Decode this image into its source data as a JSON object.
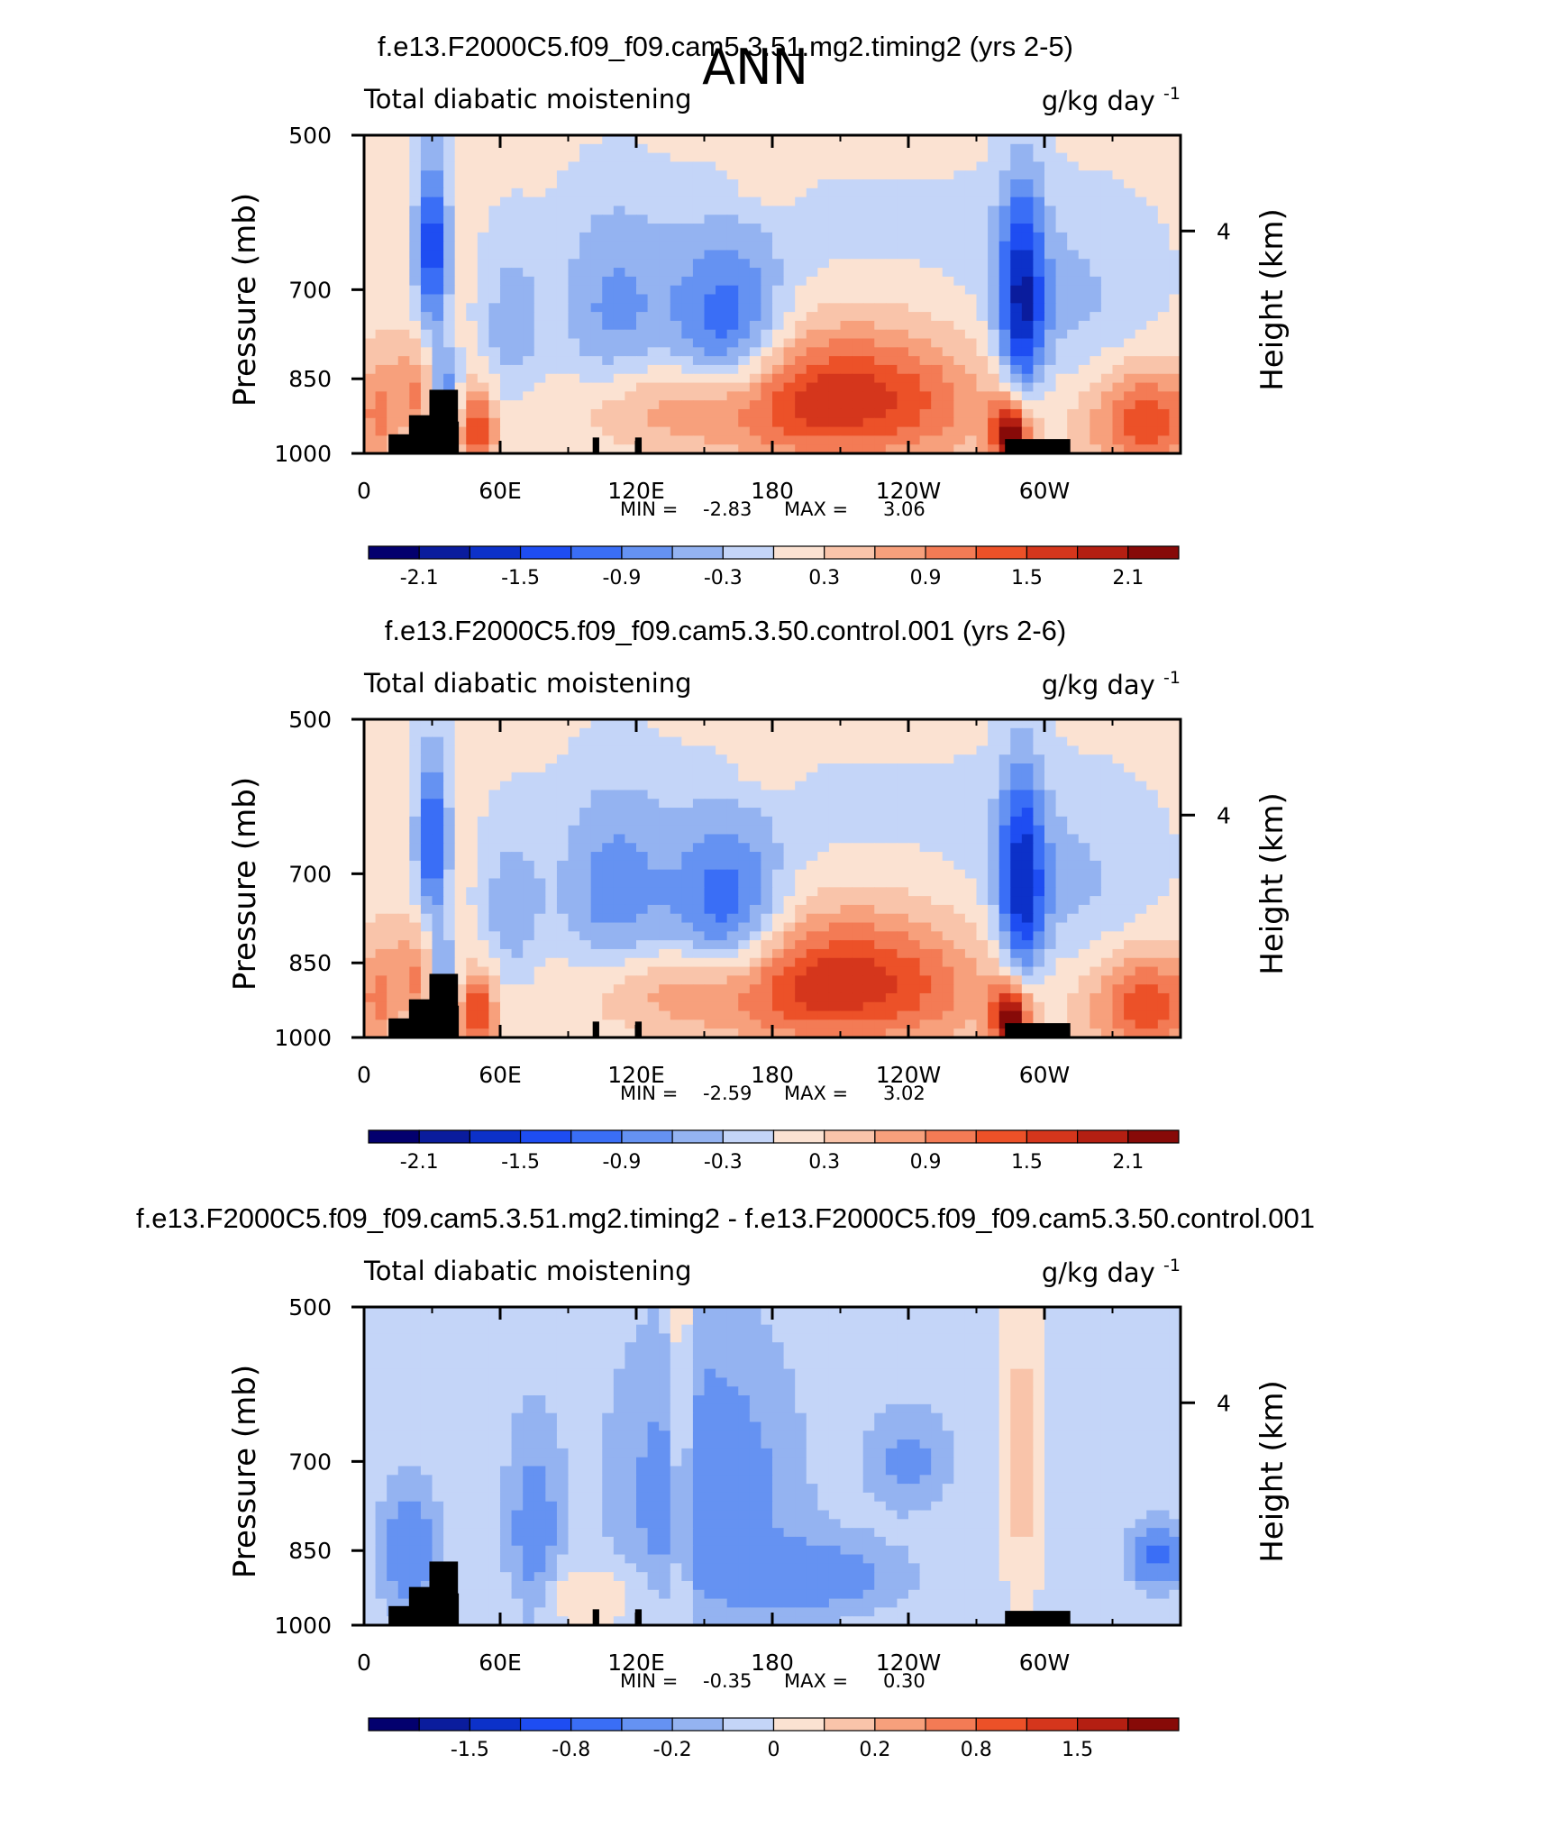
{
  "figure": {
    "season": "ANN"
  },
  "chart_data": [
    {
      "type": "heatmap",
      "title": "f.e13.F2000C5.f09_f09.cam5.3.51.mg2.timing2 (yrs 2-5)",
      "left_string": "Total diabatic moistening",
      "units_base": "g/kg day",
      "units_exp": "-1",
      "ylabel": "Pressure (mb)",
      "y2label": "Height (km)",
      "y_ticks": [
        "500",
        "700",
        "850",
        "1000"
      ],
      "y_tick_values": [
        500,
        700,
        850,
        1000
      ],
      "y2_ticks": [
        "4"
      ],
      "y2_tick_pressure": [
        616
      ],
      "x_ticks": [
        "0",
        "60E",
        "120E",
        "180",
        "120W",
        "60W"
      ],
      "x_tick_values": [
        0,
        60,
        120,
        180,
        240,
        300
      ],
      "xlim": [
        0,
        360
      ],
      "ylim": [
        1000,
        500
      ],
      "min_label": "MIN =",
      "min_value": "-2.83",
      "max_label": "MAX =",
      "max_value": "3.06",
      "colorbar_labels": [
        "-2.1",
        "-1.5",
        "-0.9",
        "-0.3",
        "0.3",
        "0.9",
        "1.5",
        "2.1"
      ],
      "colorbar_levels": [
        -2.4,
        -2.1,
        -1.8,
        -1.5,
        -1.2,
        -0.9,
        -0.6,
        -0.3,
        0,
        0.3,
        0.6,
        0.9,
        1.2,
        1.5,
        1.8,
        2.1,
        2.4
      ],
      "blobs": [
        {
          "lon": 30,
          "p": 640,
          "dlon": 5,
          "dp": 90,
          "v": -1.6
        },
        {
          "lon": 35,
          "p": 880,
          "dlon": 5,
          "dp": 60,
          "v": -1.5
        },
        {
          "lon": 25,
          "p": 880,
          "dlon": 10,
          "dp": 70,
          "v": 0.9
        },
        {
          "lon": 50,
          "p": 950,
          "dlon": 6,
          "dp": 60,
          "v": 1.3
        },
        {
          "lon": 65,
          "p": 760,
          "dlon": 10,
          "dp": 100,
          "v": -0.6
        },
        {
          "lon": 110,
          "p": 740,
          "dlon": 18,
          "dp": 120,
          "v": -0.8
        },
        {
          "lon": 160,
          "p": 770,
          "dlon": 18,
          "dp": 100,
          "v": -1.4
        },
        {
          "lon": 130,
          "p": 900,
          "dlon": 35,
          "dp": 60,
          "v": 0.5
        },
        {
          "lon": 210,
          "p": 890,
          "dlon": 45,
          "dp": 90,
          "v": 1.6
        },
        {
          "lon": 220,
          "p": 610,
          "dlon": 70,
          "dp": 60,
          "v": -0.2
        },
        {
          "lon": 177,
          "p": 550,
          "dlon": 10,
          "dp": 30,
          "v": 0.3
        },
        {
          "lon": 290,
          "p": 720,
          "dlon": 7,
          "dp": 120,
          "v": -1.7
        },
        {
          "lon": 285,
          "p": 960,
          "dlon": 6,
          "dp": 50,
          "v": 2.2
        },
        {
          "lon": 310,
          "p": 740,
          "dlon": 30,
          "dp": 110,
          "v": -0.5
        },
        {
          "lon": 345,
          "p": 930,
          "dlon": 18,
          "dp": 80,
          "v": 1.3
        },
        {
          "lon": 5,
          "p": 920,
          "dlon": 6,
          "dp": 80,
          "v": 0.8
        }
      ],
      "background": 0.12
    },
    {
      "type": "heatmap",
      "title": "f.e13.F2000C5.f09_f09.cam5.3.50.control.001 (yrs 2-6)",
      "left_string": "Total diabatic moistening",
      "units_base": "g/kg day",
      "units_exp": "-1",
      "ylabel": "Pressure (mb)",
      "y2label": "Height (km)",
      "y_ticks": [
        "500",
        "700",
        "850",
        "1000"
      ],
      "y_tick_values": [
        500,
        700,
        850,
        1000
      ],
      "y2_ticks": [
        "4"
      ],
      "y2_tick_pressure": [
        616
      ],
      "x_ticks": [
        "0",
        "60E",
        "120E",
        "180",
        "120W",
        "60W"
      ],
      "x_tick_values": [
        0,
        60,
        120,
        180,
        240,
        300
      ],
      "xlim": [
        0,
        360
      ],
      "ylim": [
        1000,
        500
      ],
      "min_label": "MIN =",
      "min_value": "-2.59",
      "max_label": "MAX =",
      "max_value": "3.02",
      "colorbar_labels": [
        "-2.1",
        "-1.5",
        "-0.9",
        "-0.3",
        "0.3",
        "0.9",
        "1.5",
        "2.1"
      ],
      "colorbar_levels": [
        -2.4,
        -2.1,
        -1.8,
        -1.5,
        -1.2,
        -0.9,
        -0.6,
        -0.3,
        0,
        0.3,
        0.6,
        0.9,
        1.2,
        1.5,
        1.8,
        2.1,
        2.4
      ],
      "blobs": [
        {
          "lon": 30,
          "p": 650,
          "dlon": 5,
          "dp": 90,
          "v": -1.4
        },
        {
          "lon": 35,
          "p": 880,
          "dlon": 5,
          "dp": 60,
          "v": -1.3
        },
        {
          "lon": 25,
          "p": 880,
          "dlon": 10,
          "dp": 70,
          "v": 0.9
        },
        {
          "lon": 50,
          "p": 950,
          "dlon": 6,
          "dp": 60,
          "v": 1.4
        },
        {
          "lon": 65,
          "p": 760,
          "dlon": 10,
          "dp": 100,
          "v": -0.6
        },
        {
          "lon": 110,
          "p": 740,
          "dlon": 18,
          "dp": 120,
          "v": -0.9
        },
        {
          "lon": 160,
          "p": 770,
          "dlon": 18,
          "dp": 100,
          "v": -1.4
        },
        {
          "lon": 130,
          "p": 900,
          "dlon": 35,
          "dp": 60,
          "v": 0.5
        },
        {
          "lon": 210,
          "p": 890,
          "dlon": 45,
          "dp": 90,
          "v": 1.6
        },
        {
          "lon": 220,
          "p": 610,
          "dlon": 70,
          "dp": 60,
          "v": -0.2
        },
        {
          "lon": 177,
          "p": 550,
          "dlon": 10,
          "dp": 30,
          "v": 0.3
        },
        {
          "lon": 290,
          "p": 720,
          "dlon": 7,
          "dp": 120,
          "v": -1.6
        },
        {
          "lon": 285,
          "p": 960,
          "dlon": 6,
          "dp": 50,
          "v": 2.2
        },
        {
          "lon": 310,
          "p": 740,
          "dlon": 30,
          "dp": 110,
          "v": -0.5
        },
        {
          "lon": 345,
          "p": 930,
          "dlon": 18,
          "dp": 80,
          "v": 1.3
        },
        {
          "lon": 5,
          "p": 920,
          "dlon": 6,
          "dp": 80,
          "v": 0.8
        }
      ],
      "background": 0.12
    },
    {
      "type": "heatmap",
      "title": "f.e13.F2000C5.f09_f09.cam5.3.51.mg2.timing2 - f.e13.F2000C5.f09_f09.cam5.3.50.control.001",
      "left_string": "Total diabatic moistening",
      "units_base": "g/kg day",
      "units_exp": "-1",
      "ylabel": "Pressure (mb)",
      "y2label": "Height (km)",
      "y_ticks": [
        "500",
        "700",
        "850",
        "1000"
      ],
      "y_tick_values": [
        500,
        700,
        850,
        1000
      ],
      "y2_ticks": [
        "4"
      ],
      "y2_tick_pressure": [
        616
      ],
      "x_ticks": [
        "0",
        "60E",
        "120E",
        "180",
        "120W",
        "60W"
      ],
      "x_tick_values": [
        0,
        60,
        120,
        180,
        240,
        300
      ],
      "xlim": [
        0,
        360
      ],
      "ylim": [
        1000,
        500
      ],
      "min_label": "MIN =",
      "min_value": "-0.35",
      "max_label": "MAX =",
      "max_value": "0.30",
      "colorbar_labels": [
        "-1.5",
        "-0.8",
        "-0.2",
        "0",
        "0.2",
        "0.8",
        "1.5"
      ],
      "colorbar_levels": [
        -2,
        -1.5,
        -1,
        -0.8,
        -0.6,
        -0.4,
        -0.2,
        -0.1,
        0,
        0.1,
        0.2,
        0.4,
        0.6,
        0.8,
        1,
        1.5,
        2
      ],
      "blobs": [
        {
          "lon": 20,
          "p": 850,
          "dlon": 8,
          "dp": 80,
          "v": -0.3
        },
        {
          "lon": 75,
          "p": 820,
          "dlon": 8,
          "dp": 120,
          "v": -0.25
        },
        {
          "lon": 150,
          "p": 750,
          "dlon": 25,
          "dp": 150,
          "v": -0.3
        },
        {
          "lon": 200,
          "p": 900,
          "dlon": 25,
          "dp": 50,
          "v": -0.25
        },
        {
          "lon": 140,
          "p": 700,
          "dlon": 4,
          "dp": 200,
          "v": 0.25
        },
        {
          "lon": 290,
          "p": 700,
          "dlon": 6,
          "dp": 200,
          "v": 0.2
        },
        {
          "lon": 350,
          "p": 860,
          "dlon": 8,
          "dp": 40,
          "v": -0.4
        },
        {
          "lon": 100,
          "p": 940,
          "dlon": 20,
          "dp": 50,
          "v": 0.15
        },
        {
          "lon": 240,
          "p": 700,
          "dlon": 12,
          "dp": 50,
          "v": -0.2
        }
      ],
      "background": -0.05
    }
  ]
}
